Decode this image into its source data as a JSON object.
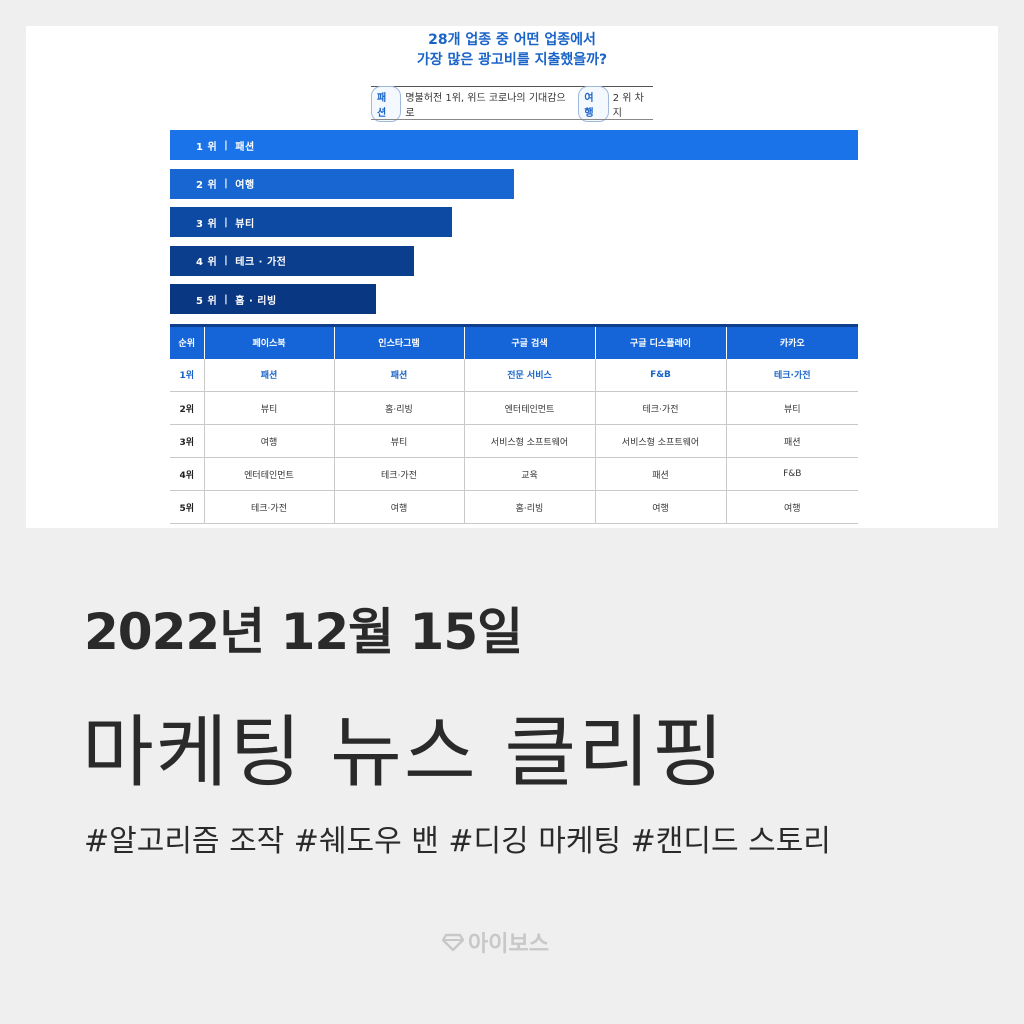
{
  "card": {
    "title_line1": "28개 업종 중 어떤 업종에서",
    "title_line2": "가장 많은 광고비를 지출했을까?",
    "subtitle": {
      "pill1": "패션",
      "text1": "명불허전 1위, 위드 코로나의 기대감으로",
      "pill2": "여행",
      "text2": "2 위 차지"
    }
  },
  "chart_data": {
    "type": "bar",
    "orientation": "horizontal",
    "categories": [
      "1 위 | 패션",
      "2 위 | 여행",
      "3 위 | 뷰티",
      "4 위 | 테크 · 가전",
      "5 위 | 홈 · 리빙"
    ],
    "bars": [
      {
        "rank": "1 위",
        "label": "패션",
        "value": 100,
        "color": "#1a73e8"
      },
      {
        "rank": "2 위",
        "label": "여행",
        "value": 50,
        "color": "#1766d1"
      },
      {
        "rank": "3 위",
        "label": "뷰티",
        "value": 41,
        "color": "#0d4aa3"
      },
      {
        "rank": "4 위",
        "label": "테크 · 가전",
        "value": 35.5,
        "color": "#0b3f8e"
      },
      {
        "rank": "5 위",
        "label": "홈 · 리빙",
        "value": 30,
        "color": "#0a3781"
      }
    ],
    "separator": "|"
  },
  "table": {
    "headers": [
      "순위",
      "페이스북",
      "인스타그램",
      "구글 검색",
      "구글 디스플레이",
      "카카오"
    ],
    "rows": [
      [
        "1위",
        "패션",
        "패션",
        "전문 서비스",
        "F&B",
        "테크·가전"
      ],
      [
        "2위",
        "뷰티",
        "홈·리빙",
        "엔터테인먼트",
        "테크·가전",
        "뷰티"
      ],
      [
        "3위",
        "여행",
        "뷰티",
        "서비스형 소프트웨어",
        "서비스형 소프트웨어",
        "패션"
      ],
      [
        "4위",
        "엔터테인먼트",
        "테크·가전",
        "교육",
        "패션",
        "F&B"
      ],
      [
        "5위",
        "테크·가전",
        "여행",
        "홈·리빙",
        "여행",
        "여행"
      ]
    ]
  },
  "date": "2022년 12월 15일",
  "headline": "마케팅 뉴스 클리핑",
  "hashtags": "#알고리즘 조작 #쉐도우 밴 #디깅 마케팅 #캔디드 스토리",
  "logo": {
    "text": "아이보스",
    "icon": "diamond-logo-icon"
  }
}
